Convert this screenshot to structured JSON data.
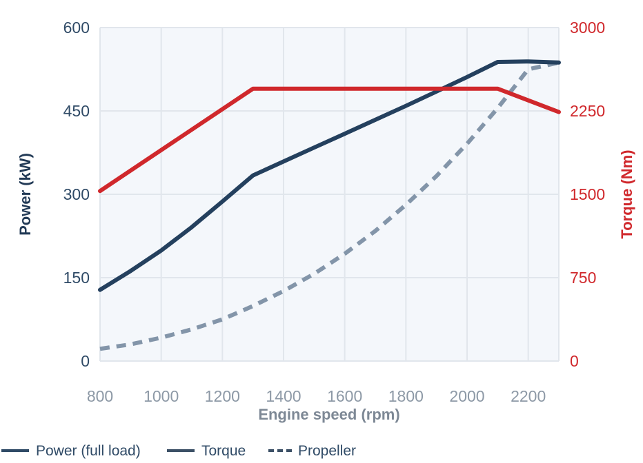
{
  "chart_data": {
    "type": "line",
    "xlabel": "Engine speed (rpm)",
    "ylabel_left": "Power (kW)",
    "ylabel_right": "Torque (Nm)",
    "x_ticks": [
      "800",
      "1000",
      "1200",
      "1400",
      "1600",
      "1800",
      "2000",
      "2200"
    ],
    "y_left_ticks": [
      "0",
      "150",
      "300",
      "450",
      "600"
    ],
    "y_right_ticks": [
      "0",
      "750",
      "1500",
      "2250",
      "3000"
    ],
    "xlim": [
      800,
      2300
    ],
    "ylim_left": [
      0,
      600
    ],
    "ylim_right": [
      0,
      3000
    ],
    "grid": true,
    "legend_position": "bottom-left",
    "series": [
      {
        "name": "Power (full load)",
        "axis": "left",
        "style": "solid",
        "color": "#24405e",
        "x": [
          800,
          900,
          1000,
          1100,
          1200,
          1300,
          1400,
          1500,
          1600,
          1700,
          1800,
          1900,
          2000,
          2100,
          2200,
          2300
        ],
        "y": [
          128,
          162,
          199,
          241,
          287,
          334,
          359,
          384,
          409,
          434,
          459,
          485,
          511,
          538,
          539,
          537
        ]
      },
      {
        "name": "Torque",
        "axis": "right",
        "style": "solid",
        "color": "#d0282c",
        "x": [
          800,
          1300,
          2100,
          2300
        ],
        "y": [
          1530,
          2450,
          2450,
          2240
        ]
      },
      {
        "name": "Propeller",
        "axis": "left",
        "style": "dashed",
        "color": "#8395a9",
        "x": [
          800,
          900,
          1000,
          1100,
          1200,
          1300,
          1400,
          1500,
          1600,
          1700,
          1800,
          1900,
          2000,
          2100,
          2200,
          2300
        ],
        "y": [
          22,
          30,
          42,
          57,
          75,
          99,
          126,
          157,
          193,
          234,
          281,
          333,
          391,
          455,
          525,
          537
        ]
      }
    ],
    "legend": [
      {
        "label": "Power (full load)",
        "style": "solid",
        "color": "#2f4a66"
      },
      {
        "label": "Torque",
        "style": "solid",
        "color": "#3b5066"
      },
      {
        "label": "Propeller",
        "style": "dashed",
        "color": "#3b5066"
      }
    ]
  }
}
